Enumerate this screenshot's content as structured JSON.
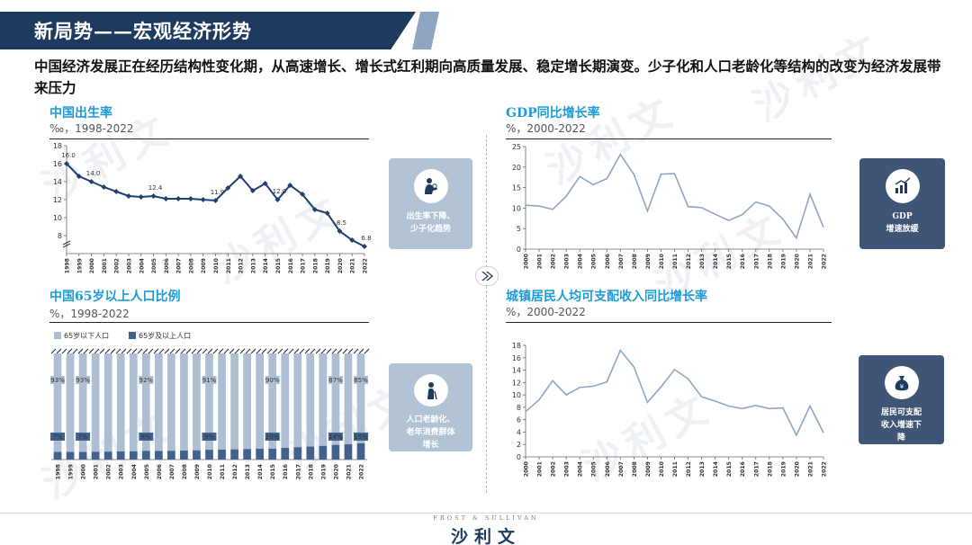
{
  "slide": {
    "title": "新局势——宏观经济形势",
    "headline": "中国经济发展正在经历结构性变化期，从高速增长、增长式红利期向高质量发展、稳定增长期演变。少子化和人口老龄化等结构的改变为经济发展带来压力"
  },
  "watermark_text": "沙利文",
  "footer": {
    "small": "FROST & SULLIVAN",
    "logo": "沙利文"
  },
  "cards": {
    "birth": {
      "text_line1": "出生率下降、",
      "text_line2": "少子化趋势",
      "icon": "mother-baby-icon"
    },
    "aging": {
      "text_line1": "人口老龄化、",
      "text_line2": "老年消费群体",
      "text_line3": "增长",
      "icon": "elderly-person-icon"
    },
    "gdp": {
      "text_line1": "GDP",
      "text_line2": "增速放缓",
      "icon": "bar-chart-growth-icon"
    },
    "income": {
      "text_line1": "居民可支配",
      "text_line2": "收入增速下",
      "text_line3": "降",
      "icon": "money-bag-icon"
    }
  },
  "colors": {
    "navy": "#1f3a5f",
    "line_dark": "#20406f",
    "line_light": "#8ea6c4",
    "bar_light": "#aebfd4",
    "bar_dark": "#44618c",
    "accent_blue": "#1f9ad6"
  },
  "chart_data": [
    {
      "id": "birth",
      "type": "line",
      "title": "中国出生率",
      "unit": "‰，1998-2022",
      "x": [
        "1998",
        "1999",
        "2000",
        "2001",
        "2002",
        "2003",
        "2004",
        "2005",
        "2006",
        "2007",
        "2008",
        "2009",
        "2010",
        "2011",
        "2012",
        "2013",
        "2014",
        "2015",
        "2016",
        "2017",
        "2018",
        "2019",
        "2020",
        "2021",
        "2022"
      ],
      "values": [
        16.0,
        14.6,
        14.0,
        13.4,
        12.9,
        12.4,
        12.3,
        12.4,
        12.1,
        12.1,
        12.1,
        12.0,
        11.9,
        13.3,
        14.6,
        13.0,
        13.8,
        12.0,
        13.6,
        12.6,
        10.9,
        10.5,
        8.5,
        7.5,
        6.8
      ],
      "labels": {
        "0": "16.0",
        "2": "14.0",
        "7": "12.4",
        "12": "11.9",
        "17": "12.0",
        "22": "8.5",
        "24": "6.8"
      },
      "y_ticks": [
        "8",
        "10",
        "12",
        "14",
        "16",
        "18"
      ],
      "ylim": [
        6,
        18
      ],
      "axis_break": true
    },
    {
      "id": "aging",
      "type": "bar",
      "stacked": true,
      "title": "中国65岁以上人口比例",
      "unit": "%，1998-2022",
      "legend": [
        "65岁以下人口",
        "65岁及以上人口"
      ],
      "x": [
        "1998",
        "1999",
        "2000",
        "2001",
        "2002",
        "2003",
        "2004",
        "2005",
        "2006",
        "2007",
        "2008",
        "2009",
        "2010",
        "2011",
        "2012",
        "2013",
        "2014",
        "2015",
        "2016",
        "2017",
        "2018",
        "2019",
        "2020",
        "2021",
        "2022"
      ],
      "series": [
        {
          "name": "65岁以下人口",
          "values": [
            93,
            93,
            93,
            92.9,
            92.7,
            92.5,
            92.4,
            92,
            92.1,
            91.9,
            91.7,
            91.5,
            91,
            90.9,
            90.6,
            90.3,
            90,
            90,
            89.2,
            88.6,
            88.1,
            87.4,
            86.5,
            86,
            85
          ]
        },
        {
          "name": "65岁及以上人口",
          "values": [
            7,
            7,
            7,
            7.1,
            7.3,
            7.5,
            7.6,
            8,
            7.9,
            8.1,
            8.3,
            8.5,
            9,
            9.1,
            9.4,
            9.7,
            10,
            10,
            10.8,
            11.4,
            11.9,
            12.6,
            13.5,
            14,
            15
          ]
        }
      ],
      "labels_top": {
        "0": "93%",
        "2": "93%",
        "7": "92%",
        "12": "91%",
        "17": "90%",
        "22": "87%",
        "24": "85%"
      },
      "labels_bottom": {
        "0": "7%",
        "2": "7%",
        "7": "8%",
        "12": "9%",
        "17": "10%",
        "22": "14%",
        "24": "15%"
      },
      "axis_break": true
    },
    {
      "id": "gdp",
      "type": "line",
      "title": "GDP同比增长率",
      "unit": "%，2000-2022",
      "x": [
        "2000",
        "2001",
        "2002",
        "2003",
        "2004",
        "2005",
        "2006",
        "2007",
        "2008",
        "2009",
        "2010",
        "2011",
        "2012",
        "2013",
        "2014",
        "2015",
        "2016",
        "2017",
        "2018",
        "2019",
        "2020",
        "2021",
        "2022"
      ],
      "values": [
        10.7,
        10.5,
        9.7,
        12.9,
        17.7,
        15.7,
        17.2,
        23.1,
        18.2,
        9.3,
        18.3,
        18.4,
        10.4,
        10.1,
        8.5,
        7.0,
        8.4,
        11.5,
        10.5,
        7.3,
        2.7,
        13.4,
        5.3
      ],
      "y_ticks": [
        "0",
        "5",
        "10",
        "15",
        "20",
        "25"
      ],
      "ylim": [
        0,
        25
      ]
    },
    {
      "id": "income",
      "type": "line",
      "title": "城镇居民人均可支配收入同比增长率",
      "unit": "%，2000-2022",
      "x": [
        "2000",
        "2001",
        "2002",
        "2003",
        "2004",
        "2005",
        "2006",
        "2007",
        "2008",
        "2009",
        "2010",
        "2011",
        "2012",
        "2013",
        "2014",
        "2015",
        "2016",
        "2017",
        "2018",
        "2019",
        "2020",
        "2021",
        "2022"
      ],
      "values": [
        7.3,
        9.2,
        12.3,
        10.0,
        11.2,
        11.4,
        12.1,
        17.2,
        14.5,
        8.8,
        11.3,
        14.1,
        12.6,
        9.7,
        9.0,
        8.2,
        7.8,
        8.3,
        7.8,
        7.9,
        3.5,
        8.2,
        3.9
      ],
      "y_ticks": [
        "0",
        "2",
        "4",
        "6",
        "8",
        "10",
        "12",
        "14",
        "16",
        "18"
      ],
      "ylim": [
        0,
        18
      ]
    }
  ]
}
